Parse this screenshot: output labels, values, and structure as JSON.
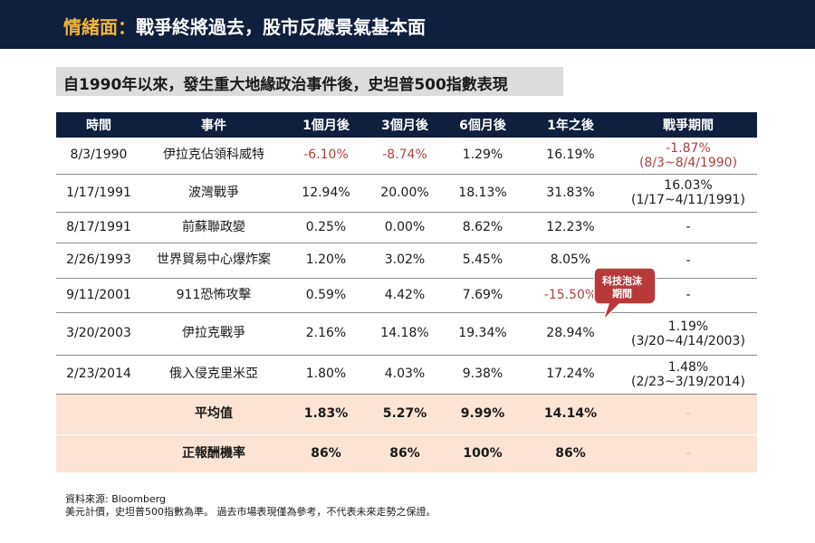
{
  "header": {
    "accent": "情緒面：",
    "title": "戰爭終將過去，股市反應景氣基本面"
  },
  "subtitle": "自1990年以來，發生重大地緣政治事件後，史坦普500指數表現",
  "table": {
    "columns": [
      "時間",
      "事件",
      "1個月後",
      "3個月後",
      "6個月後",
      "1年之後",
      "戰爭期間"
    ],
    "rows": [
      {
        "date": "8/3/1990",
        "event": "伊拉克佔領科威特",
        "m1": "-6.10%",
        "m3": "-8.74%",
        "m6": "1.29%",
        "y1": "16.19%",
        "war_value": "-1.87%",
        "war_period": "(8/3~8/4/1990)"
      },
      {
        "date": "1/17/1991",
        "event": "波灣戰爭",
        "m1": "12.94%",
        "m3": "20.00%",
        "m6": "18.13%",
        "y1": "31.83%",
        "war_value": "16.03%",
        "war_period": "(1/17~4/11/1991)"
      },
      {
        "date": "8/17/1991",
        "event": "前蘇聯政變",
        "m1": "0.25%",
        "m3": "0.00%",
        "m6": "8.62%",
        "y1": "12.23%",
        "war_value": "-",
        "war_period": ""
      },
      {
        "date": "2/26/1993",
        "event": "世界貿易中心爆炸案",
        "m1": "1.20%",
        "m3": "3.02%",
        "m6": "5.45%",
        "y1": "8.05%",
        "war_value": "-",
        "war_period": ""
      },
      {
        "date": "9/11/2001",
        "event": "911恐怖攻擊",
        "m1": "0.59%",
        "m3": "4.42%",
        "m6": "7.69%",
        "y1": "-15.50%",
        "war_value": "-",
        "war_period": ""
      },
      {
        "date": "3/20/2003",
        "event": "伊拉克戰爭",
        "m1": "2.16%",
        "m3": "14.18%",
        "m6": "19.34%",
        "y1": "28.94%",
        "war_value": "1.19%",
        "war_period": "(3/20~4/14/2003)"
      },
      {
        "date": "2/23/2014",
        "event": "俄入侵克里米亞",
        "m1": "1.80%",
        "m3": "4.03%",
        "m6": "9.38%",
        "y1": "17.24%",
        "war_value": "1.48%",
        "war_period": "(2/23~3/19/2014)"
      }
    ],
    "summary": [
      {
        "label": "平均值",
        "m1": "1.83%",
        "m3": "5.27%",
        "m6": "9.99%",
        "y1": "14.14%",
        "war": "-"
      },
      {
        "label": "正報酬機率",
        "m1": "86%",
        "m3": "86%",
        "m6": "100%",
        "y1": "86%",
        "war": "-"
      }
    ]
  },
  "callout": {
    "line1": "科技泡沫",
    "line2": "期間",
    "color": "#b83a38"
  },
  "footnote": {
    "line1": "資料來源: Bloomberg",
    "line2": "美元計價，史坦普500指數為準。  過去市場表現僅為參考，不代表未來走勢之保證。"
  },
  "colors": {
    "header_bg": "#0f1f3d",
    "accent": "#f0b43c",
    "negative": "#b0413e",
    "summary_bg": "#fbe4d5",
    "subtitle_bg": "#dcdcdc"
  }
}
